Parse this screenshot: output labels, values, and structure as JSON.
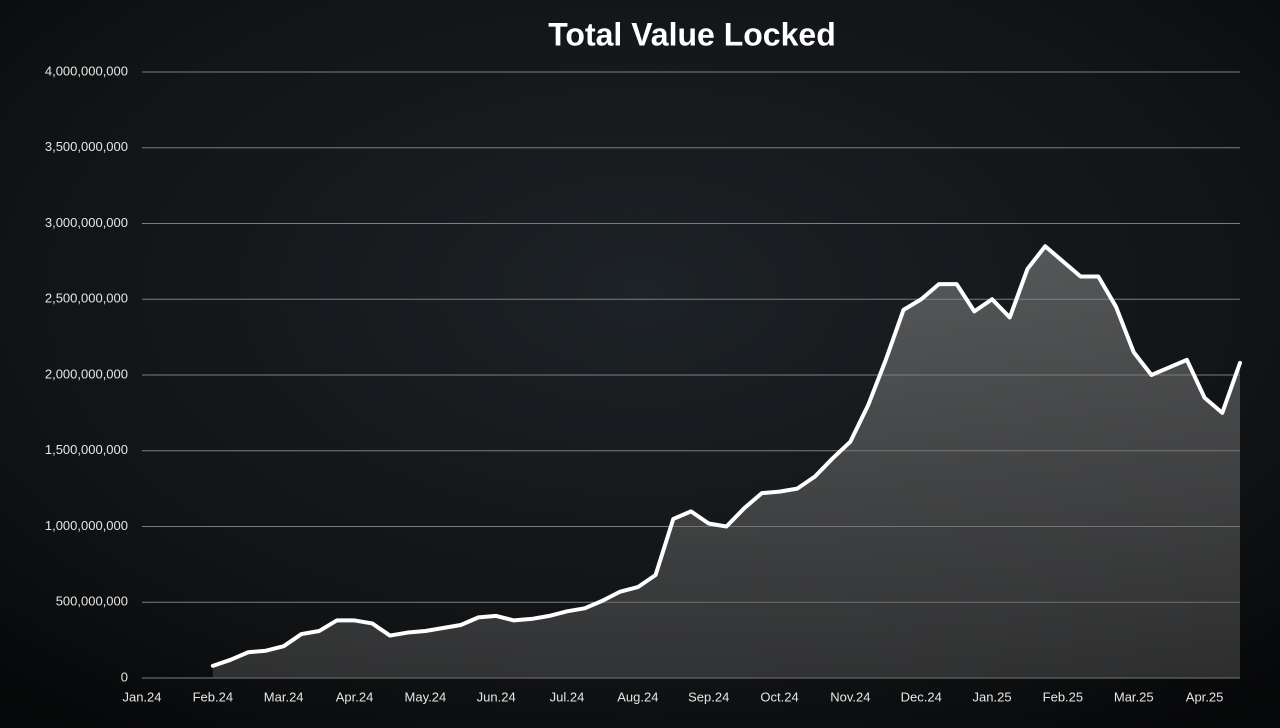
{
  "chart_data": {
    "type": "area",
    "title": "Total Value Locked",
    "categories": [
      "Jan.24",
      null,
      null,
      null,
      "Feb.24",
      null,
      null,
      null,
      "Mar.24",
      null,
      null,
      null,
      "Apr.24",
      null,
      null,
      null,
      "May.24",
      null,
      null,
      null,
      "Jun.24",
      null,
      null,
      null,
      "Jul.24",
      null,
      null,
      null,
      "Aug.24",
      null,
      null,
      null,
      "Sep.24",
      null,
      null,
      null,
      "Oct.24",
      null,
      null,
      null,
      "Nov.24",
      null,
      null,
      null,
      "Dec.24",
      null,
      null,
      null,
      "Jan.25",
      null,
      null,
      null,
      "Feb.25",
      null,
      null,
      null,
      "Mar.25",
      null,
      null,
      null,
      "Apr.25",
      null,
      null
    ],
    "values": [
      null,
      null,
      null,
      null,
      80000000,
      120000000,
      170000000,
      180000000,
      210000000,
      290000000,
      310000000,
      380000000,
      380000000,
      360000000,
      280000000,
      300000000,
      310000000,
      330000000,
      350000000,
      400000000,
      410000000,
      380000000,
      390000000,
      410000000,
      440000000,
      460000000,
      510000000,
      570000000,
      600000000,
      680000000,
      1050000000,
      1100000000,
      1020000000,
      1000000000,
      1120000000,
      1220000000,
      1230000000,
      1250000000,
      1330000000,
      1450000000,
      1560000000,
      1800000000,
      2100000000,
      2430000000,
      2500000000,
      2600000000,
      2600000000,
      2420000000,
      2500000000,
      2380000000,
      2700000000,
      2850000000,
      2750000000,
      2650000000,
      2650000000,
      2450000000,
      2150000000,
      2000000000,
      2050000000,
      2100000000,
      1850000000,
      1750000000,
      2080000000
    ],
    "color": "#ffffff",
    "ylim": [
      0,
      4000000000
    ],
    "yticks": [
      0,
      {
        "value": 500000000,
        "label": "500,000,000"
      },
      {
        "value": 1000000000,
        "label": "1,000,000,000"
      },
      {
        "value": 1500000000,
        "label": "1,500,000,000"
      },
      {
        "value": 2000000000,
        "label": "2,000,000,000"
      },
      {
        "value": 2500000000,
        "label": "2,500,000,000"
      },
      {
        "value": 3000000000,
        "label": "3,000,000,000"
      },
      {
        "value": 3500000000,
        "label": "3,500,000,000"
      },
      {
        "value": 4000000000,
        "label": "4,000,000,000"
      }
    ],
    "grid": true
  }
}
